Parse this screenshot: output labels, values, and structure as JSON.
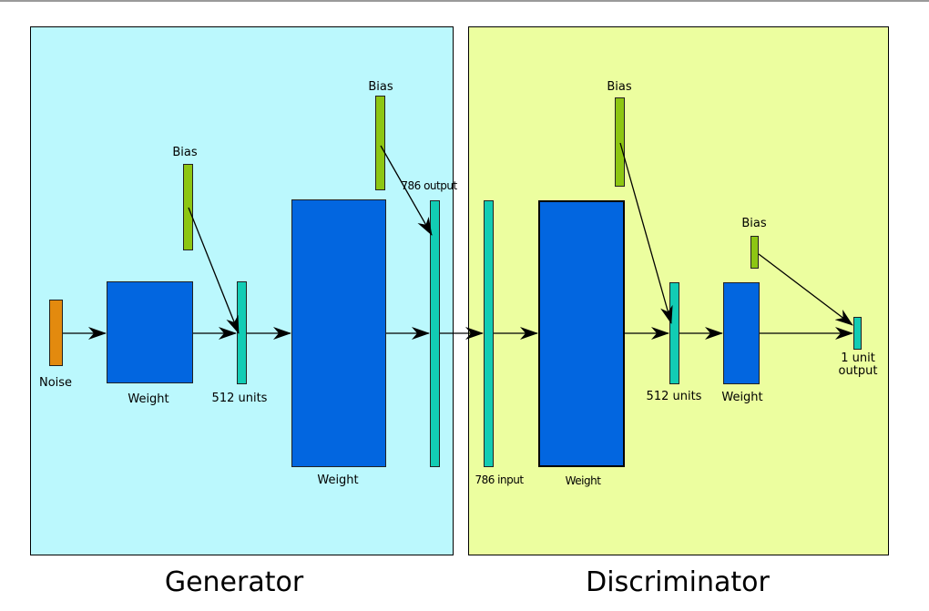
{
  "generator": {
    "title": "Generator",
    "noise_label": "Noise",
    "weight1_label": "Weight",
    "hidden_label": "512 units",
    "bias1_label": "Bias",
    "weight2_label": "Weight",
    "bias2_label": "Bias",
    "output_label": "786 output"
  },
  "discriminator": {
    "title": "Discriminator",
    "input_label": "786 input",
    "weight1_label": "Weight",
    "bias1_label": "Bias",
    "hidden_label": "512 units",
    "weight2_label": "Weight",
    "bias2_label": "Bias",
    "output_label_line1": "1 unit",
    "output_label_line2": "output"
  },
  "colors": {
    "generator_bg": "#bbf8fd",
    "discriminator_bg": "#ecfe9f",
    "weight": "#0266e0",
    "bias": "#8dc613",
    "units": "#12ccb4",
    "noise": "#e38a0e"
  }
}
